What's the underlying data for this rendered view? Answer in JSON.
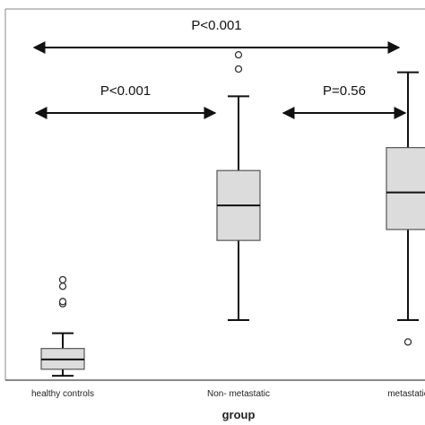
{
  "chart_data": {
    "type": "box",
    "title": "",
    "xlabel": "group",
    "ylabel": "",
    "categories": [
      "healthy controls",
      "Non- metastatic",
      "metastatic"
    ],
    "ylim": [
      0,
      340
    ],
    "grid": false,
    "legend": "none",
    "box_color": "#dcdcdc",
    "line_color": "#111111",
    "boxes": [
      {
        "category": "healthy controls",
        "whisker_low": 4,
        "q1": 10,
        "median": 19,
        "q3": 29,
        "whisker_high": 43,
        "outliers": [
          70,
          72,
          86,
          92
        ]
      },
      {
        "category": "Non- metastatic",
        "whisker_low": 55,
        "q1": 128,
        "median": 160,
        "q3": 192,
        "whisker_high": 260,
        "outliers": [
          285,
          298
        ]
      },
      {
        "category": "metastatic",
        "whisker_low": 55,
        "q1": 138,
        "median": 172,
        "q3": 213,
        "whisker_high": 282,
        "outliers": [
          35
        ]
      }
    ],
    "annotations": [
      {
        "text": "P<0.001",
        "from": "healthy controls",
        "to": "metastatic",
        "level": 1
      },
      {
        "text": "P<0.001",
        "from": "healthy controls",
        "to": "Non- metastatic",
        "level": 2
      },
      {
        "text": "P=0.56",
        "from": "Non- metastatic",
        "to": "metastatic",
        "level": 2
      }
    ]
  }
}
